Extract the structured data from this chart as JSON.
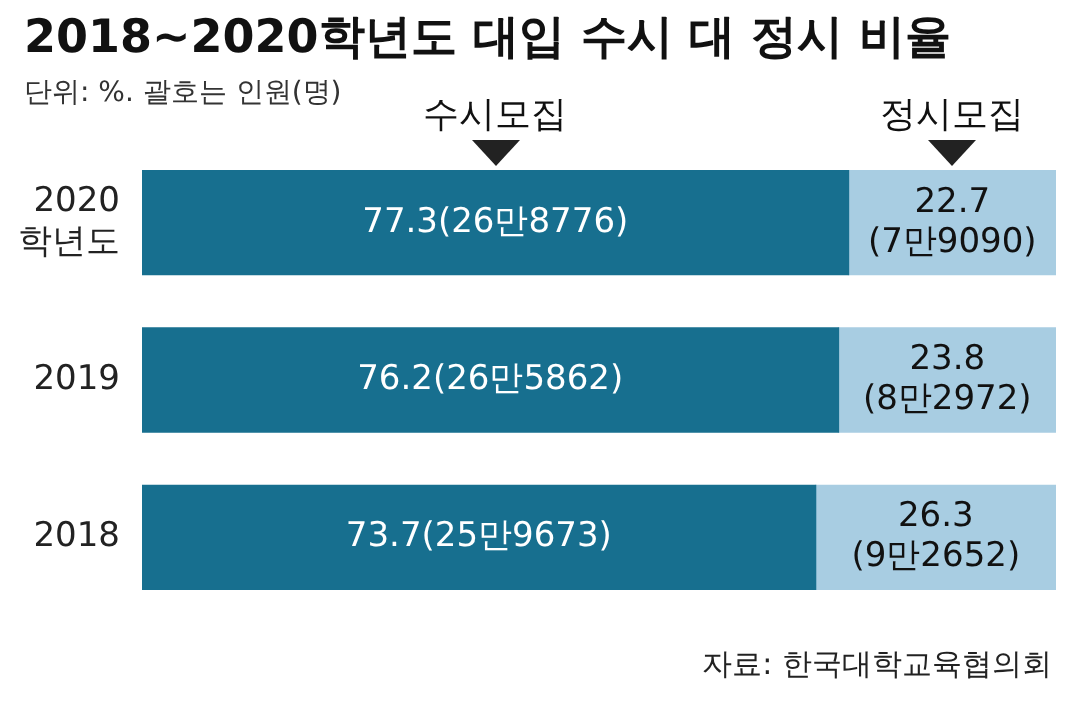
{
  "chart_data": {
    "type": "bar",
    "orientation": "horizontal",
    "stacked": true,
    "title": "2018~2020학년도 대입 수시 대 정시 비율",
    "subtitle": "단위: %. 괄호는 인원(명)",
    "categories": [
      "2020학년도",
      "2019",
      "2018"
    ],
    "series": [
      {
        "name": "수시모집",
        "color": "#176f8f",
        "values": [
          77.3,
          76.2,
          73.7
        ],
        "value_labels": [
          "77.3(26만8776)",
          "76.2(26만5862)",
          "73.7(25만9673)"
        ]
      },
      {
        "name": "정시모집",
        "color": "#a8cde2",
        "values": [
          22.7,
          23.8,
          26.3
        ],
        "value_labels": [
          "22.7(7만9090)",
          "23.8(8만2972)",
          "26.3(9만2652)"
        ]
      }
    ],
    "xlim": [
      0,
      100
    ],
    "tick_labels": "y",
    "legend": "top",
    "annotations": [
      "자료: 한국대학교육협의회"
    ]
  }
}
